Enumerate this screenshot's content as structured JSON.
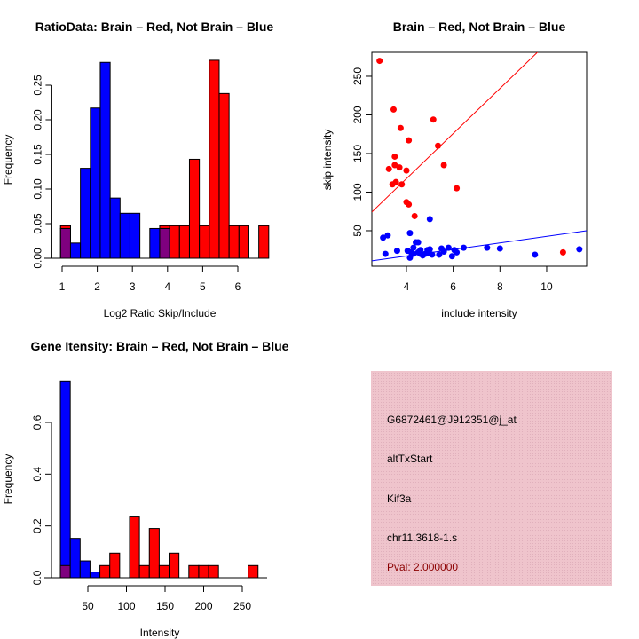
{
  "chart_data": [
    {
      "type": "bar",
      "subtype": "overlaid-histogram",
      "title": "RatioData: Brain – Red, Not Brain – Blue",
      "xlabel": "Log2 Ratio Skip/Include",
      "ylabel": "Frequency",
      "xlim": [
        0.96,
        6.6
      ],
      "ylim": [
        0,
        0.29
      ],
      "xticks": [
        "1",
        "2",
        "3",
        "4",
        "5",
        "6"
      ],
      "yticks": [
        "0.00",
        "0.05",
        "0.10",
        "0.15",
        "0.20",
        "0.25"
      ],
      "bin_start": 0.957,
      "bin_width": 0.282,
      "series": [
        {
          "name": "Brain",
          "color": "#ff0000",
          "values": [
            0.047,
            0,
            0,
            0,
            0,
            0,
            0,
            0,
            0,
            0,
            0.047,
            0.047,
            0.047,
            0.143,
            0.047,
            0.286,
            0.238,
            0.047,
            0.047,
            0,
            0.047
          ]
        },
        {
          "name": "Not Brain",
          "color": "#0000ff",
          "values": [
            0.043,
            0.022,
            0.13,
            0.217,
            0.283,
            0.087,
            0.065,
            0.065,
            0,
            0.043,
            0.043,
            0,
            0,
            0,
            0,
            0,
            0,
            0,
            0,
            0,
            0
          ]
        }
      ],
      "overlap_color": "#7f007f"
    },
    {
      "type": "scatter",
      "title": "Brain – Red, Not Brain – Blue",
      "xlabel": "include intensity",
      "ylabel": "skip intensity",
      "xlim": [
        2.52,
        11.71
      ],
      "ylim": [
        4,
        281
      ],
      "xticks": [
        "4",
        "6",
        "8",
        "10"
      ],
      "yticks": [
        "50",
        "100",
        "150",
        "200",
        "250"
      ],
      "series": [
        {
          "name": "Brain",
          "color": "#ff0000",
          "fit": {
            "slope": 29.2,
            "intercept": 0.6
          },
          "points": [
            [
              2.85,
              270
            ],
            [
              3.45,
              207
            ],
            [
              3.75,
              183
            ],
            [
              4.1,
              167
            ],
            [
              5.15,
              194
            ],
            [
              5.35,
              160
            ],
            [
              3.5,
              146
            ],
            [
              3.25,
              130
            ],
            [
              3.5,
              135
            ],
            [
              3.7,
              132
            ],
            [
              4.0,
              128
            ],
            [
              5.6,
              135
            ],
            [
              3.4,
              110
            ],
            [
              3.55,
              113
            ],
            [
              3.8,
              110
            ],
            [
              6.15,
              105
            ],
            [
              4.0,
              87
            ],
            [
              4.1,
              84
            ],
            [
              4.35,
              69
            ],
            [
              10.7,
              22
            ]
          ]
        },
        {
          "name": "Not Brain",
          "color": "#0000ff",
          "fit": {
            "slope": 4.24,
            "intercept": 0.3
          },
          "points": [
            [
              3.0,
              41
            ],
            [
              3.2,
              44
            ],
            [
              4.15,
              47
            ],
            [
              5.0,
              65
            ],
            [
              3.1,
              20
            ],
            [
              3.6,
              24
            ],
            [
              4.05,
              24
            ],
            [
              4.15,
              15
            ],
            [
              4.3,
              28
            ],
            [
              4.4,
              35
            ],
            [
              4.5,
              35
            ],
            [
              4.3,
              20
            ],
            [
              4.5,
              22
            ],
            [
              4.6,
              25
            ],
            [
              4.7,
              18
            ],
            [
              4.8,
              20
            ],
            [
              4.9,
              25
            ],
            [
              5.0,
              26
            ],
            [
              5.1,
              19
            ],
            [
              5.4,
              19
            ],
            [
              5.5,
              27
            ],
            [
              5.6,
              23
            ],
            [
              5.8,
              28
            ],
            [
              5.95,
              17
            ],
            [
              6.05,
              25
            ],
            [
              6.15,
              22
            ],
            [
              6.45,
              28
            ],
            [
              7.45,
              28
            ],
            [
              8.0,
              27
            ],
            [
              9.5,
              19
            ],
            [
              11.4,
              26
            ],
            [
              4.6,
              20
            ],
            [
              4.95,
              21
            ],
            [
              4.2,
              22
            ]
          ]
        }
      ]
    },
    {
      "type": "bar",
      "subtype": "overlaid-histogram",
      "title": "Gene Itensity: Brain – Red, Not Brain – Blue",
      "xlabel": "Intensity",
      "ylabel": "Frequency",
      "xlim": [
        14.4,
        283
      ],
      "ylim": [
        0,
        0.78
      ],
      "xticks": [
        "50",
        "100",
        "150",
        "200",
        "250"
      ],
      "yticks": [
        "0.0",
        "0.2",
        "0.4",
        "0.6"
      ],
      "bin_start": 14.4,
      "bin_width": 12.8,
      "series": [
        {
          "name": "Brain",
          "color": "#ff0000",
          "values": [
            0.047,
            0,
            0,
            0,
            0.047,
            0.095,
            0,
            0.238,
            0.047,
            0.19,
            0.047,
            0.095,
            0,
            0.047,
            0.047,
            0.047,
            0,
            0,
            0,
            0.047
          ]
        },
        {
          "name": "Not Brain",
          "color": "#0000ff",
          "values": [
            0.76,
            0.152,
            0.065,
            0.022,
            0,
            0,
            0,
            0,
            0,
            0,
            0,
            0,
            0,
            0,
            0,
            0,
            0,
            0,
            0,
            0
          ]
        }
      ],
      "overlap_color": "#7f007f"
    }
  ],
  "info_panel": {
    "probe_id": "G6872461@J912351@j_at",
    "event_type": "altTxStart",
    "gene": "Kif3a",
    "location": "chr11.3618-1.s",
    "pval": "Pval: 2.000000",
    "background_color": "#efc4cc",
    "pval_color": "#8b0000"
  }
}
